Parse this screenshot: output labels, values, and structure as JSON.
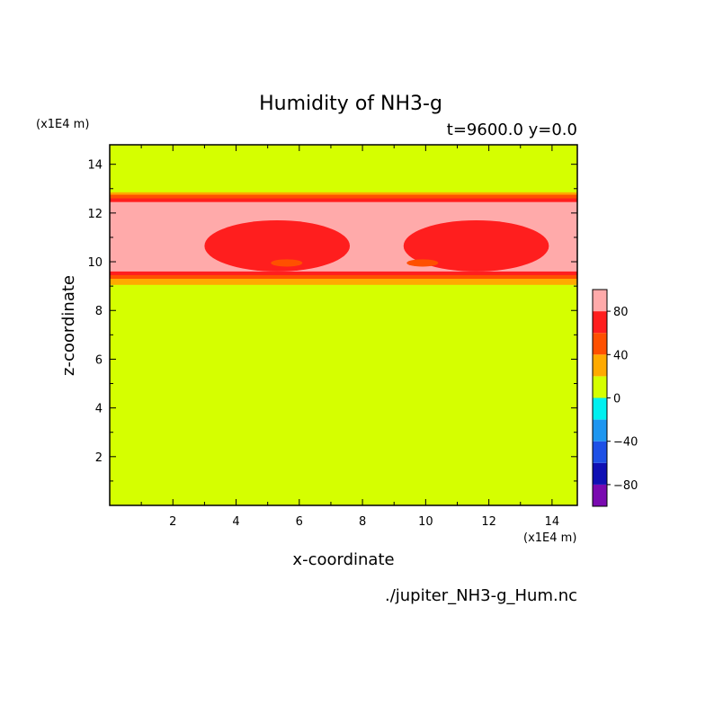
{
  "chart_data": {
    "type": "heatmap",
    "title": "Humidity of NH3-g",
    "subtitle": "t=9600.0 y=0.0",
    "xlabel": "x-coordinate",
    "ylabel": "z-coordinate",
    "x_unit": "(x1E4 m)",
    "y_unit": "(x1E4 m)",
    "source": "./jupiter_NH3-g_Hum.nc",
    "xlim": [
      0,
      14.8
    ],
    "ylim": [
      0,
      14.8
    ],
    "x_ticks": [
      2,
      4,
      6,
      8,
      10,
      12,
      14
    ],
    "y_ticks": [
      2,
      4,
      6,
      8,
      10,
      12,
      14
    ],
    "colorbar": {
      "levels": [
        -100,
        -80,
        -60,
        -40,
        -20,
        0,
        20,
        40,
        60,
        80,
        100
      ],
      "colors": [
        "#7a0ab0",
        "#1010b4",
        "#1e50e6",
        "#1e96f0",
        "#00f0f0",
        "#d5ff00",
        "#ffaa00",
        "#ff5000",
        "#ff1e1e",
        "#ffaaaa"
      ],
      "tick_labels": [
        {
          "value": 80,
          "label": "80"
        },
        {
          "value": 40,
          "label": "40"
        },
        {
          "value": 0,
          "label": "0"
        },
        {
          "value": -40,
          "label": "−40"
        },
        {
          "value": -80,
          "label": "−80"
        }
      ]
    },
    "field": {
      "background": "#d5ff00",
      "layers": [
        {
          "range": [
            20,
            40
          ],
          "color": "#ffaa00",
          "z_bottom": 9.05,
          "z_top": 12.85
        },
        {
          "range": [
            40,
            60
          ],
          "color": "#ff5000",
          "z_bottom": 9.3,
          "z_top": 12.75
        },
        {
          "range": [
            60,
            80
          ],
          "color": "#ff1e1e",
          "z_bottom": 9.45,
          "z_top": 12.6
        },
        {
          "range": [
            80,
            100
          ],
          "color": "#ffaaaa",
          "z_bottom": 9.6,
          "z_top": 12.45
        }
      ],
      "cores": [
        {
          "color": "#ff1e1e",
          "x_center": 5.3,
          "x_halfwidth": 2.3,
          "z_bottom": 9.6,
          "z_top": 11.7
        },
        {
          "color": "#ff1e1e",
          "x_center": 11.6,
          "x_halfwidth": 2.3,
          "z_bottom": 9.6,
          "z_top": 11.7
        },
        {
          "color": "#ff5000",
          "x_center": 5.6,
          "x_halfwidth": 0.5,
          "z_bottom": 9.8,
          "z_top": 10.1
        },
        {
          "color": "#ff5000",
          "x_center": 9.9,
          "x_halfwidth": 0.5,
          "z_bottom": 9.8,
          "z_top": 10.1
        }
      ]
    }
  }
}
